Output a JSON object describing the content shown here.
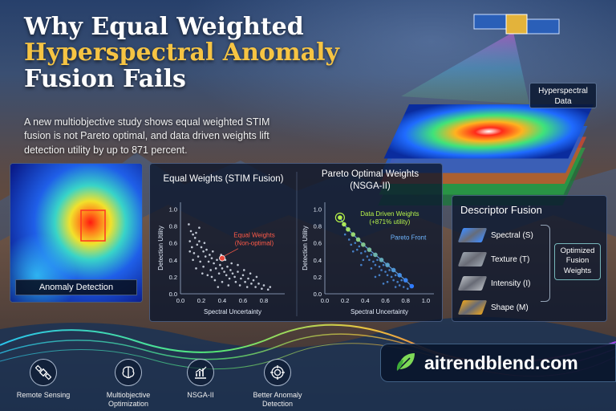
{
  "title": {
    "line1": "Why Equal Weighted",
    "line2": "Hyperspectral Anomaly",
    "line3": "Fusion Fails"
  },
  "subtitle": "A new multiobjective study shows equal weighted STIM fusion is not Pareto optimal, and data driven weights lift detection utility by up to 871 percent.",
  "hyperspectral_label": "Hyperspectral Data",
  "anomaly_caption": "Anomaly Detection",
  "colors": {
    "accent_yellow": "#f6c443",
    "equal_point": "#e9463a",
    "pareto_green": "#b6f24a",
    "pareto_blue": "#2f7bff",
    "brand_green": "#7ed957"
  },
  "chart_data": [
    {
      "type": "scatter",
      "title": "Equal Weights (STIM Fusion)",
      "xlabel": "Spectral Uncertainty",
      "ylabel": "Detection Utility",
      "xlim": [
        0,
        1.0
      ],
      "ylim": [
        0,
        1.0
      ],
      "xticks": [
        "0.0",
        "0.2",
        "0.4",
        "0.6",
        "0.8"
      ],
      "yticks": [
        "0.0",
        "0.2",
        "0.4",
        "0.6",
        "0.8",
        "1.0"
      ],
      "annotation": {
        "line1": "Equal Weights",
        "line2": "(Non-optimal)",
        "x": 0.4,
        "y": 0.42
      },
      "points": [
        [
          0.08,
          0.82
        ],
        [
          0.1,
          0.74
        ],
        [
          0.12,
          0.7
        ],
        [
          0.09,
          0.62
        ],
        [
          0.14,
          0.66
        ],
        [
          0.16,
          0.58
        ],
        [
          0.11,
          0.55
        ],
        [
          0.18,
          0.62
        ],
        [
          0.2,
          0.55
        ],
        [
          0.13,
          0.48
        ],
        [
          0.22,
          0.5
        ],
        [
          0.17,
          0.44
        ],
        [
          0.25,
          0.52
        ],
        [
          0.24,
          0.44
        ],
        [
          0.28,
          0.46
        ],
        [
          0.19,
          0.38
        ],
        [
          0.27,
          0.38
        ],
        [
          0.3,
          0.42
        ],
        [
          0.32,
          0.36
        ],
        [
          0.22,
          0.32
        ],
        [
          0.35,
          0.4
        ],
        [
          0.34,
          0.3
        ],
        [
          0.29,
          0.28
        ],
        [
          0.38,
          0.34
        ],
        [
          0.4,
          0.3
        ],
        [
          0.37,
          0.24
        ],
        [
          0.42,
          0.26
        ],
        [
          0.45,
          0.32
        ],
        [
          0.44,
          0.22
        ],
        [
          0.48,
          0.28
        ],
        [
          0.47,
          0.18
        ],
        [
          0.5,
          0.24
        ],
        [
          0.52,
          0.2
        ],
        [
          0.55,
          0.26
        ],
        [
          0.53,
          0.14
        ],
        [
          0.58,
          0.18
        ],
        [
          0.6,
          0.22
        ],
        [
          0.57,
          0.1
        ],
        [
          0.62,
          0.14
        ],
        [
          0.65,
          0.18
        ],
        [
          0.64,
          0.08
        ],
        [
          0.68,
          0.12
        ],
        [
          0.7,
          0.16
        ],
        [
          0.72,
          0.08
        ],
        [
          0.75,
          0.12
        ],
        [
          0.78,
          0.06
        ],
        [
          0.8,
          0.1
        ],
        [
          0.84,
          0.05
        ],
        [
          0.86,
          0.08
        ],
        [
          0.3,
          0.2
        ],
        [
          0.26,
          0.22
        ],
        [
          0.33,
          0.16
        ],
        [
          0.4,
          0.14
        ],
        [
          0.46,
          0.1
        ],
        [
          0.36,
          0.08
        ],
        [
          0.15,
          0.3
        ],
        [
          0.21,
          0.24
        ],
        [
          0.12,
          0.4
        ],
        [
          0.09,
          0.5
        ],
        [
          0.23,
          0.6
        ],
        [
          0.15,
          0.72
        ],
        [
          0.31,
          0.5
        ],
        [
          0.43,
          0.4
        ],
        [
          0.55,
          0.34
        ],
        [
          0.61,
          0.28
        ],
        [
          0.67,
          0.24
        ],
        [
          0.73,
          0.2
        ],
        [
          0.49,
          0.36
        ],
        [
          0.39,
          0.46
        ],
        [
          0.18,
          0.78
        ]
      ]
    },
    {
      "type": "scatter",
      "title": "Pareto Optimal Weights (NSGA-II)",
      "xlabel": "Spectral Uncertainty",
      "ylabel": "Detection Utility",
      "xlim": [
        0,
        1.0
      ],
      "ylim": [
        0,
        1.0
      ],
      "xticks": [
        "0.0",
        "0.2",
        "0.4",
        "0.6",
        "0.8",
        "1.0"
      ],
      "yticks": [
        "0.0",
        "0.2",
        "0.4",
        "0.6",
        "0.8",
        "1.0"
      ],
      "annotation_best": {
        "line1": "Data Driven Weights",
        "line2": "(+871% utility)",
        "x": 0.15,
        "y": 0.9
      },
      "annotation_front": "Pareto Front",
      "front": [
        [
          0.15,
          0.9
        ],
        [
          0.19,
          0.82
        ],
        [
          0.23,
          0.76
        ],
        [
          0.28,
          0.7
        ],
        [
          0.33,
          0.64
        ],
        [
          0.38,
          0.58
        ],
        [
          0.44,
          0.52
        ],
        [
          0.5,
          0.46
        ],
        [
          0.56,
          0.4
        ],
        [
          0.62,
          0.34
        ],
        [
          0.68,
          0.28
        ],
        [
          0.74,
          0.22
        ],
        [
          0.8,
          0.16
        ],
        [
          0.86,
          0.09
        ]
      ],
      "points": [
        [
          0.2,
          0.7
        ],
        [
          0.24,
          0.64
        ],
        [
          0.26,
          0.58
        ],
        [
          0.3,
          0.6
        ],
        [
          0.32,
          0.52
        ],
        [
          0.34,
          0.56
        ],
        [
          0.36,
          0.48
        ],
        [
          0.4,
          0.5
        ],
        [
          0.42,
          0.44
        ],
        [
          0.44,
          0.4
        ],
        [
          0.46,
          0.46
        ],
        [
          0.48,
          0.38
        ],
        [
          0.5,
          0.34
        ],
        [
          0.52,
          0.4
        ],
        [
          0.54,
          0.32
        ],
        [
          0.56,
          0.28
        ],
        [
          0.58,
          0.34
        ],
        [
          0.6,
          0.26
        ],
        [
          0.62,
          0.22
        ],
        [
          0.64,
          0.28
        ],
        [
          0.66,
          0.2
        ],
        [
          0.68,
          0.16
        ],
        [
          0.7,
          0.22
        ],
        [
          0.72,
          0.14
        ],
        [
          0.74,
          0.1
        ],
        [
          0.76,
          0.16
        ],
        [
          0.78,
          0.08
        ],
        [
          0.82,
          0.06
        ],
        [
          0.38,
          0.4
        ],
        [
          0.46,
          0.3
        ],
        [
          0.54,
          0.22
        ],
        [
          0.62,
          0.14
        ],
        [
          0.7,
          0.08
        ],
        [
          0.28,
          0.5
        ],
        [
          0.36,
          0.34
        ],
        [
          0.5,
          0.2
        ],
        [
          0.58,
          0.12
        ]
      ]
    }
  ],
  "fusion": {
    "title": "Descriptor Fusion",
    "items": [
      {
        "label": "Spectral (S)",
        "color": "#3f8cff"
      },
      {
        "label": "Texture (T)",
        "color": "#9aa3ad"
      },
      {
        "label": "Intensity (I)",
        "color": "#b5b9bf"
      },
      {
        "label": "Shape (M)",
        "color": "#e8a320"
      }
    ],
    "result_line1": "Optimized",
    "result_line2": "Fusion",
    "result_line3": "Weights"
  },
  "brand": {
    "text": "aitrendblend.com",
    "icon": "leaf-icon"
  },
  "icons": [
    {
      "label": "Remote Sensing",
      "icon": "satellite-icon"
    },
    {
      "label_line1": "Multiobjective",
      "label_line2": "Optimization",
      "icon": "brain-icon"
    },
    {
      "label": "NSGA-II",
      "icon": "chart-icon"
    },
    {
      "label_line1": "Better Anomaly",
      "label_line2": "Detection",
      "icon": "target-icon"
    }
  ]
}
